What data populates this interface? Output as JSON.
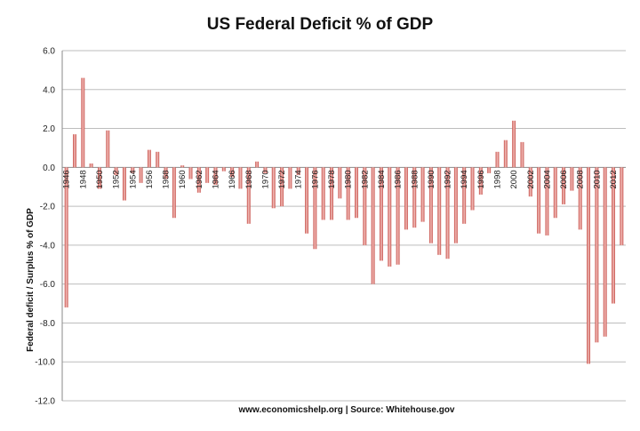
{
  "chart_data": {
    "type": "bar",
    "title": "US Federal Deficit % of GDP",
    "xlabel": "www.economicshelp.org | Source: Whitehouse.gov",
    "ylabel": "Federal deficit / Surplus % of GDP",
    "ylim": [
      -12.0,
      6.0
    ],
    "yticks": [
      "6.0",
      "4.0",
      "2.0",
      "0.0",
      "-2.0",
      "-4.0",
      "-6.0",
      "-8.0",
      "-10.0",
      "-12.0"
    ],
    "categories": [
      "1946",
      "1947",
      "1948",
      "1949",
      "1950",
      "1951",
      "1952",
      "1953",
      "1954",
      "1955",
      "1956",
      "1957",
      "1958",
      "1959",
      "1960",
      "1961",
      "1962",
      "1963",
      "1964",
      "1965",
      "1966",
      "1967",
      "1968",
      "1969",
      "1970",
      "1971",
      "1972",
      "1973",
      "1974",
      "1975",
      "1976",
      "1977",
      "1978",
      "1979",
      "1980",
      "1981",
      "1982",
      "1983",
      "1984",
      "1985",
      "1986",
      "1987",
      "1988",
      "1989",
      "1990",
      "1991",
      "1992",
      "1993",
      "1994",
      "1995",
      "1996",
      "1997",
      "1998",
      "1999",
      "2000",
      "2001",
      "2002",
      "2003",
      "2004",
      "2005",
      "2006",
      "2007",
      "2008",
      "2009",
      "2010",
      "2011",
      "2012",
      "2013"
    ],
    "xtick_labels": [
      "1946",
      "1948",
      "1950",
      "1952",
      "1954",
      "1956",
      "1958",
      "1960",
      "1962",
      "1964",
      "1966",
      "1968",
      "1970",
      "1972",
      "1974",
      "1976",
      "1978",
      "1980",
      "1982",
      "1984",
      "1986",
      "1988",
      "1990",
      "1992",
      "1994",
      "1996",
      "1998",
      "2000",
      "2002",
      "2004",
      "2006",
      "2008",
      "2010",
      "2012"
    ],
    "values": [
      -7.2,
      1.7,
      4.6,
      0.2,
      -1.1,
      1.9,
      -0.4,
      -1.7,
      -0.3,
      -0.8,
      0.9,
      0.8,
      -0.6,
      -2.6,
      0.1,
      -0.6,
      -1.3,
      -0.8,
      -0.9,
      -0.2,
      -0.5,
      -1.1,
      -2.9,
      0.3,
      -0.3,
      -2.1,
      -2.0,
      -1.1,
      -0.4,
      -3.4,
      -4.2,
      -2.7,
      -2.7,
      -1.6,
      -2.7,
      -2.6,
      -4.0,
      -6.0,
      -4.8,
      -5.1,
      -5.0,
      -3.2,
      -3.1,
      -2.8,
      -3.9,
      -4.5,
      -4.7,
      -3.9,
      -2.9,
      -2.2,
      -1.4,
      -0.3,
      0.8,
      1.4,
      2.4,
      1.3,
      -1.5,
      -3.4,
      -3.5,
      -2.6,
      -1.9,
      -1.2,
      -3.2,
      -10.1,
      -9.0,
      -8.7,
      -7.0,
      -4.0
    ],
    "bar_color": "#c44a44",
    "bar_highlight": "#f4c1bd",
    "grid": true,
    "legend": "none"
  }
}
